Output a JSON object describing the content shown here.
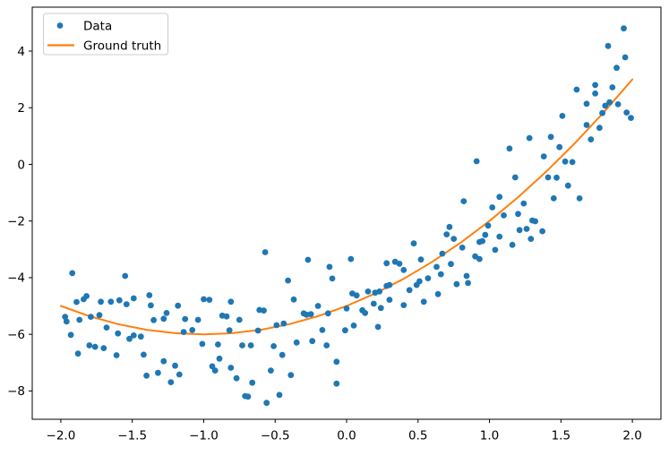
{
  "chart_data": {
    "type": "scatter",
    "title": "",
    "xlabel": "",
    "ylabel": "",
    "grid": false,
    "background_color": "#ffffff",
    "axes_color": "#000000",
    "xlim": [
      -2.2,
      2.2
    ],
    "ylim": [
      -9.0,
      5.55
    ],
    "xticks": {
      "values": [
        -2.0,
        -1.5,
        -1.0,
        -0.5,
        0.0,
        0.5,
        1.0,
        1.5,
        2.0
      ],
      "labels": [
        "−2.0",
        "−1.5",
        "−1.0",
        "−0.5",
        "0.0",
        "0.5",
        "1.0",
        "1.5",
        "2.0"
      ]
    },
    "yticks": {
      "values": [
        4,
        2,
        0,
        -2,
        -4,
        -6,
        -8
      ],
      "labels": [
        "4",
        "2",
        "0",
        "−2",
        "−4",
        "−6",
        "−8"
      ]
    },
    "legend": {
      "position": "upper left",
      "background": "#ffffff",
      "border_color": "#cccccc"
    },
    "series": [
      {
        "name": "Data",
        "type": "scatter",
        "marker": "circle",
        "color": "#1f77b4",
        "points": [
          [
            -1.92,
            -3.84
          ],
          [
            -1.55,
            -3.94
          ],
          [
            -1.89,
            -4.86
          ],
          [
            -1.84,
            -4.76
          ],
          [
            -1.82,
            -4.65
          ],
          [
            -1.72,
            -4.85
          ],
          [
            -1.65,
            -4.85
          ],
          [
            -1.59,
            -4.8
          ],
          [
            -1.54,
            -4.94
          ],
          [
            -1.49,
            -4.73
          ],
          [
            -1.38,
            -4.62
          ],
          [
            -1.37,
            -4.98
          ],
          [
            -1.18,
            -4.99
          ],
          [
            -1.97,
            -5.38
          ],
          [
            -1.96,
            -5.55
          ],
          [
            -1.93,
            -6.02
          ],
          [
            -1.87,
            -5.49
          ],
          [
            -1.79,
            -5.38
          ],
          [
            -1.73,
            -5.32
          ],
          [
            -1.68,
            -5.76
          ],
          [
            -1.6,
            -5.97
          ],
          [
            -1.52,
            -6.16
          ],
          [
            -1.49,
            -6.04
          ],
          [
            -1.44,
            -6.08
          ],
          [
            -1.35,
            -5.5
          ],
          [
            -1.28,
            -5.45
          ],
          [
            -1.26,
            -5.25
          ],
          [
            -1.13,
            -5.46
          ],
          [
            -1.14,
            -5.92
          ],
          [
            -1.08,
            -5.85
          ],
          [
            -1.8,
            -6.39
          ],
          [
            -1.76,
            -6.44
          ],
          [
            -1.7,
            -6.49
          ],
          [
            -1.88,
            -6.68
          ],
          [
            -1.61,
            -6.74
          ],
          [
            -1.42,
            -6.72
          ],
          [
            -1.28,
            -6.95
          ],
          [
            -1.2,
            -7.11
          ],
          [
            -1.32,
            -7.36
          ],
          [
            -1.4,
            -7.46
          ],
          [
            -1.17,
            -7.42
          ],
          [
            -1.23,
            -7.69
          ],
          [
            -0.57,
            -3.1
          ],
          [
            -0.27,
            -3.37
          ],
          [
            -0.12,
            -3.62
          ],
          [
            -0.1,
            -4.03
          ],
          [
            -0.41,
            -4.1
          ],
          [
            -0.37,
            -4.77
          ],
          [
            -1.0,
            -4.76
          ],
          [
            -0.96,
            -4.78
          ],
          [
            -0.81,
            -4.85
          ],
          [
            -0.61,
            -5.14
          ],
          [
            -0.58,
            -5.16
          ],
          [
            -0.3,
            -5.26
          ],
          [
            -0.28,
            -5.31
          ],
          [
            -0.25,
            -5.29
          ],
          [
            -0.2,
            -5.0
          ],
          [
            -0.13,
            -5.26
          ],
          [
            -0.87,
            -5.34
          ],
          [
            -0.84,
            -5.37
          ],
          [
            -0.75,
            -5.49
          ],
          [
            -1.04,
            -5.49
          ],
          [
            -0.82,
            -5.86
          ],
          [
            -0.62,
            -5.87
          ],
          [
            -0.49,
            -5.68
          ],
          [
            -0.44,
            -5.62
          ],
          [
            -0.17,
            -5.85
          ],
          [
            -0.01,
            -5.86
          ],
          [
            0.0,
            -5.09
          ],
          [
            -1.01,
            -6.34
          ],
          [
            -0.9,
            -6.36
          ],
          [
            -0.73,
            -6.39
          ],
          [
            -0.67,
            -6.39
          ],
          [
            -0.51,
            -6.42
          ],
          [
            -0.35,
            -6.29
          ],
          [
            -0.24,
            -6.24
          ],
          [
            -0.14,
            -6.39
          ],
          [
            -0.94,
            -7.13
          ],
          [
            -0.92,
            -7.28
          ],
          [
            -0.89,
            -6.86
          ],
          [
            -0.81,
            -7.18
          ],
          [
            -0.77,
            -7.55
          ],
          [
            -0.66,
            -7.71
          ],
          [
            -0.53,
            -7.28
          ],
          [
            -0.45,
            -6.73
          ],
          [
            -0.39,
            -7.44
          ],
          [
            -0.07,
            -6.97
          ],
          [
            -0.07,
            -7.74
          ],
          [
            -0.71,
            -8.18
          ],
          [
            -0.69,
            -8.2
          ],
          [
            -0.47,
            -8.14
          ],
          [
            -0.56,
            -8.42
          ],
          [
            0.91,
            0.11
          ],
          [
            0.82,
            -1.3
          ],
          [
            1.07,
            -1.15
          ],
          [
            1.02,
            -1.52
          ],
          [
            1.1,
            -1.8
          ],
          [
            0.72,
            -2.21
          ],
          [
            0.7,
            -2.47
          ],
          [
            0.75,
            -2.63
          ],
          [
            0.99,
            -2.16
          ],
          [
            0.97,
            -2.49
          ],
          [
            0.93,
            -2.74
          ],
          [
            0.95,
            -2.71
          ],
          [
            0.81,
            -2.94
          ],
          [
            1.04,
            -3.02
          ],
          [
            1.07,
            -2.55
          ],
          [
            0.47,
            -2.79
          ],
          [
            0.67,
            -3.15
          ],
          [
            0.9,
            -3.25
          ],
          [
            0.93,
            -3.34
          ],
          [
            0.03,
            -3.34
          ],
          [
            0.28,
            -3.49
          ],
          [
            0.34,
            -3.44
          ],
          [
            0.37,
            -3.51
          ],
          [
            0.52,
            -3.36
          ],
          [
            0.73,
            -3.52
          ],
          [
            0.4,
            -3.73
          ],
          [
            0.63,
            -3.62
          ],
          [
            0.57,
            -4.02
          ],
          [
            0.66,
            -3.88
          ],
          [
            0.84,
            -3.94
          ],
          [
            0.77,
            -4.23
          ],
          [
            0.85,
            -4.19
          ],
          [
            0.49,
            -4.26
          ],
          [
            0.51,
            -4.13
          ],
          [
            0.28,
            -4.29
          ],
          [
            0.3,
            -4.26
          ],
          [
            0.15,
            -4.49
          ],
          [
            0.2,
            -4.53
          ],
          [
            0.23,
            -4.49
          ],
          [
            0.07,
            -4.63
          ],
          [
            0.04,
            -4.56
          ],
          [
            0.44,
            -4.44
          ],
          [
            0.64,
            -4.58
          ],
          [
            0.54,
            -4.85
          ],
          [
            0.3,
            -4.78
          ],
          [
            0.19,
            -4.92
          ],
          [
            0.24,
            -5.07
          ],
          [
            0.11,
            -5.15
          ],
          [
            0.13,
            -5.25
          ],
          [
            0.4,
            -4.97
          ],
          [
            0.05,
            -5.69
          ],
          [
            0.22,
            -5.74
          ],
          [
            1.94,
            4.8
          ],
          [
            1.83,
            4.18
          ],
          [
            1.95,
            3.78
          ],
          [
            1.89,
            3.41
          ],
          [
            1.74,
            2.8
          ],
          [
            1.61,
            2.64
          ],
          [
            1.74,
            2.5
          ],
          [
            1.86,
            2.72
          ],
          [
            1.68,
            2.14
          ],
          [
            1.81,
            2.07
          ],
          [
            1.84,
            2.19
          ],
          [
            1.9,
            2.12
          ],
          [
            1.79,
            1.81
          ],
          [
            1.96,
            1.83
          ],
          [
            1.99,
            1.64
          ],
          [
            1.68,
            1.39
          ],
          [
            1.77,
            1.29
          ],
          [
            1.51,
            1.71
          ],
          [
            1.71,
            0.88
          ],
          [
            1.28,
            0.93
          ],
          [
            1.43,
            0.97
          ],
          [
            1.14,
            0.56
          ],
          [
            1.49,
            0.61
          ],
          [
            1.38,
            0.28
          ],
          [
            1.53,
            0.1
          ],
          [
            1.58,
            0.08
          ],
          [
            1.55,
            -0.75
          ],
          [
            1.18,
            -0.46
          ],
          [
            1.41,
            -0.46
          ],
          [
            1.47,
            -0.47
          ],
          [
            1.63,
            -1.2
          ],
          [
            1.45,
            -1.2
          ],
          [
            1.24,
            -1.38
          ],
          [
            1.2,
            -1.75
          ],
          [
            1.3,
            -1.98
          ],
          [
            1.32,
            -2.01
          ],
          [
            1.37,
            -2.36
          ],
          [
            1.21,
            -2.32
          ],
          [
            1.26,
            -2.28
          ],
          [
            1.29,
            -2.63
          ],
          [
            1.16,
            -2.84
          ]
        ]
      },
      {
        "name": "Ground truth",
        "type": "line",
        "color": "#ff7f0e",
        "points": [
          [
            -2.0,
            -5.0
          ],
          [
            -1.8,
            -5.36
          ],
          [
            -1.6,
            -5.64
          ],
          [
            -1.4,
            -5.84
          ],
          [
            -1.2,
            -5.96
          ],
          [
            -1.0,
            -6.0
          ],
          [
            -0.8,
            -5.96
          ],
          [
            -0.6,
            -5.84
          ],
          [
            -0.4,
            -5.64
          ],
          [
            -0.2,
            -5.36
          ],
          [
            0.0,
            -5.0
          ],
          [
            0.2,
            -4.56
          ],
          [
            0.4,
            -4.04
          ],
          [
            0.6,
            -3.44
          ],
          [
            0.8,
            -2.76
          ],
          [
            1.0,
            -2.0
          ],
          [
            1.2,
            -1.16
          ],
          [
            1.4,
            -0.24
          ],
          [
            1.6,
            0.76
          ],
          [
            1.8,
            1.84
          ],
          [
            2.0,
            3.0
          ]
        ]
      }
    ]
  }
}
